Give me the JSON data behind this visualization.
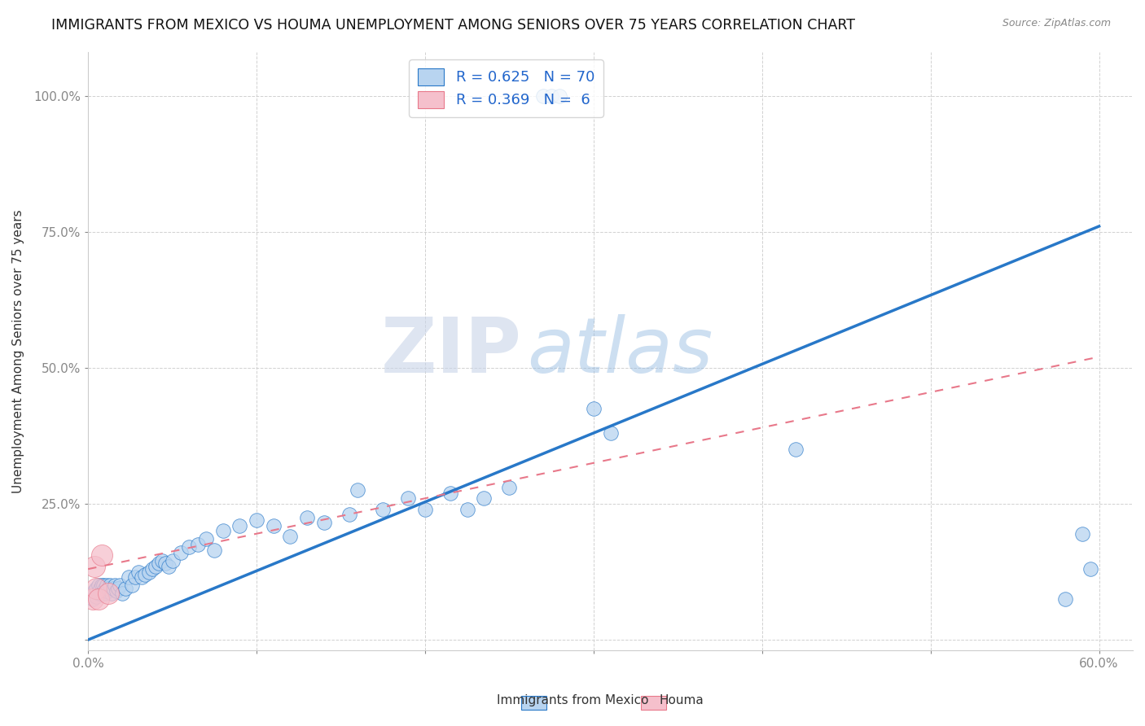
{
  "title": "IMMIGRANTS FROM MEXICO VS HOUMA UNEMPLOYMENT AMONG SENIORS OVER 75 YEARS CORRELATION CHART",
  "source": "Source: ZipAtlas.com",
  "ylabel": "Unemployment Among Seniors over 75 years",
  "xlim": [
    0.0,
    0.62
  ],
  "ylim": [
    -0.02,
    1.08
  ],
  "xtick_positions": [
    0.0,
    0.1,
    0.2,
    0.3,
    0.4,
    0.5,
    0.6
  ],
  "xticklabels": [
    "0.0%",
    "",
    "",
    "",
    "",
    "",
    "60.0%"
  ],
  "ytick_positions": [
    0.0,
    0.25,
    0.5,
    0.75,
    1.0
  ],
  "ytick_labels": [
    "",
    "25.0%",
    "50.0%",
    "75.0%",
    "100.0%"
  ],
  "blue_color": "#b8d4f0",
  "blue_line_color": "#2878c8",
  "pink_color": "#f5c0cc",
  "pink_line_color": "#e8788a",
  "legend_r_blue": "R = 0.625",
  "legend_n_blue": "N = 70",
  "legend_r_pink": "R = 0.369",
  "legend_n_pink": "N =  6",
  "watermark_zip": "ZIP",
  "watermark_atlas": "atlas",
  "legend_label_blue": "Immigrants from Mexico",
  "legend_label_pink": "Houma",
  "blue_scatter_x": [
    0.003,
    0.004,
    0.005,
    0.005,
    0.006,
    0.006,
    0.007,
    0.007,
    0.008,
    0.008,
    0.009,
    0.009,
    0.01,
    0.01,
    0.011,
    0.011,
    0.012,
    0.013,
    0.014,
    0.015,
    0.016,
    0.017,
    0.018,
    0.019,
    0.02,
    0.022,
    0.024,
    0.026,
    0.028,
    0.03,
    0.032,
    0.034,
    0.036,
    0.038,
    0.04,
    0.042,
    0.044,
    0.046,
    0.048,
    0.05,
    0.055,
    0.06,
    0.065,
    0.07,
    0.075,
    0.08,
    0.09,
    0.1,
    0.11,
    0.12,
    0.13,
    0.14,
    0.155,
    0.16,
    0.175,
    0.19,
    0.2,
    0.215,
    0.225,
    0.235,
    0.25,
    0.27,
    0.275,
    0.28,
    0.3,
    0.31,
    0.42,
    0.58,
    0.59,
    0.595
  ],
  "blue_scatter_y": [
    0.075,
    0.09,
    0.08,
    0.095,
    0.085,
    0.1,
    0.085,
    0.095,
    0.1,
    0.085,
    0.09,
    0.1,
    0.095,
    0.085,
    0.1,
    0.09,
    0.095,
    0.1,
    0.085,
    0.095,
    0.1,
    0.09,
    0.095,
    0.1,
    0.085,
    0.095,
    0.115,
    0.1,
    0.115,
    0.125,
    0.115,
    0.12,
    0.125,
    0.13,
    0.135,
    0.14,
    0.145,
    0.14,
    0.135,
    0.145,
    0.16,
    0.17,
    0.175,
    0.185,
    0.165,
    0.2,
    0.21,
    0.22,
    0.21,
    0.19,
    0.225,
    0.215,
    0.23,
    0.275,
    0.24,
    0.26,
    0.24,
    0.27,
    0.24,
    0.26,
    0.28,
    1.0,
    1.0,
    1.0,
    0.425,
    0.38,
    0.35,
    0.075,
    0.195,
    0.13
  ],
  "pink_scatter_x": [
    0.003,
    0.004,
    0.005,
    0.006,
    0.008,
    0.012
  ],
  "pink_scatter_y": [
    0.075,
    0.135,
    0.095,
    0.075,
    0.155,
    0.085
  ],
  "blue_line_x0": 0.0,
  "blue_line_y0": 0.0,
  "blue_line_x1": 0.6,
  "blue_line_y1": 0.76,
  "pink_line_x0": 0.0,
  "pink_line_y0": 0.13,
  "pink_line_x1": 0.6,
  "pink_line_y1": 0.52
}
